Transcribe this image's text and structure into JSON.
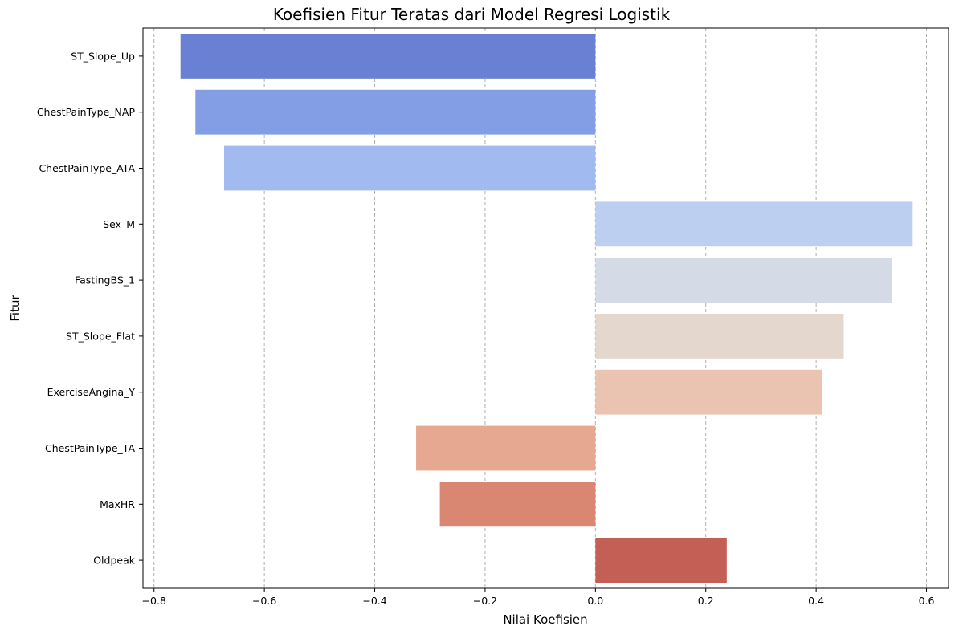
{
  "chart_data": {
    "type": "bar",
    "orientation": "horizontal",
    "title": "Koefisien Fitur Teratas dari Model Regresi Logistik",
    "xlabel": "Nilai Koefisien",
    "ylabel": "Fitur",
    "xlim": [
      -0.82,
      0.64
    ],
    "xticks": [
      -0.8,
      -0.6,
      -0.4,
      -0.2,
      0.0,
      0.2,
      0.4,
      0.6
    ],
    "xtick_labels": [
      "−0.8",
      "−0.6",
      "−0.4",
      "−0.2",
      "0.0",
      "0.2",
      "0.4",
      "0.6"
    ],
    "grid": "x-axis dashed",
    "categories": [
      "ST_Slope_Up",
      "ChestPainType_NAP",
      "ChestPainType_ATA",
      "Sex_M",
      "FastingBS_1",
      "ST_Slope_Flat",
      "ExerciseAngina_Y",
      "ChestPainType_TA",
      "MaxHR",
      "Oldpeak"
    ],
    "values": [
      -0.752,
      -0.725,
      -0.673,
      0.575,
      0.537,
      0.45,
      0.41,
      -0.325,
      -0.282,
      0.238
    ],
    "colors": [
      "#6a80d2",
      "#839ee4",
      "#a1bbf1",
      "#bccff1",
      "#d4dae6",
      "#e3d7ce",
      "#eac4b1",
      "#e6a890",
      "#d98773",
      "#c45f55"
    ]
  }
}
